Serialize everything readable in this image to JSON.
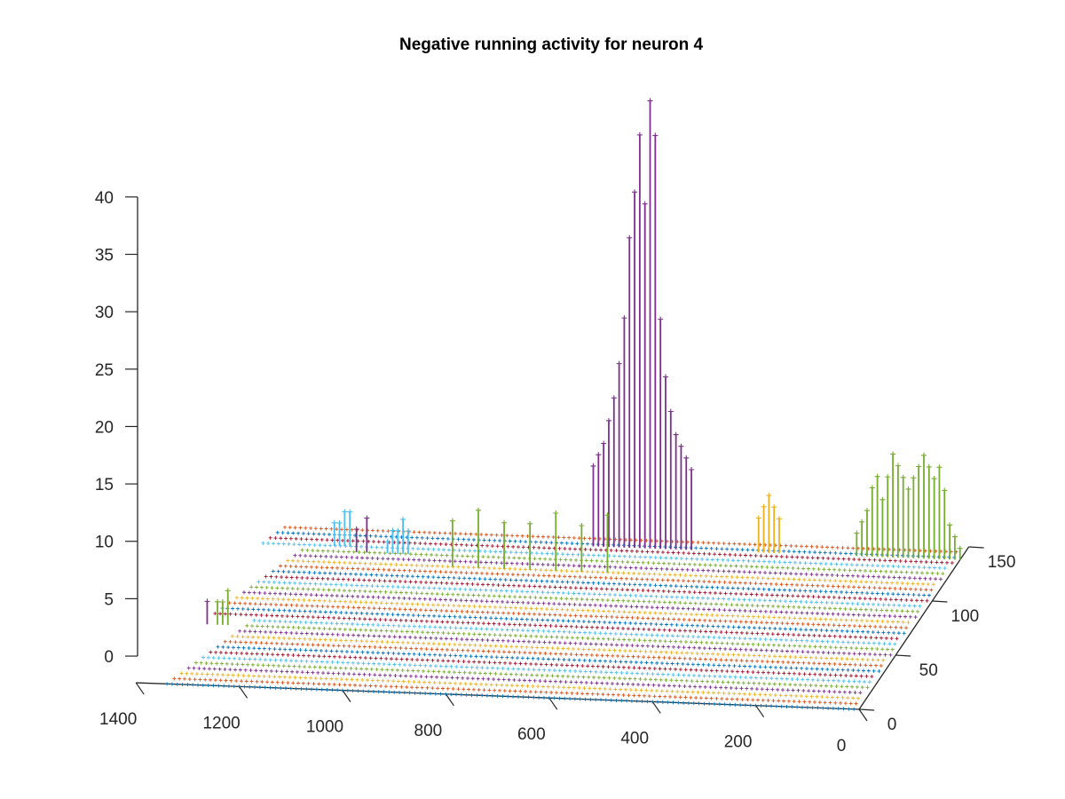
{
  "chart_data": {
    "type": "stem3",
    "title": "Negative running activity for neuron 4",
    "xlabel": "",
    "ylabel": "",
    "zlabel": "",
    "xlim": [
      0,
      1400
    ],
    "ylim": [
      0,
      150
    ],
    "zlim": [
      0,
      40
    ],
    "x_ticks": [
      "0",
      "200",
      "400",
      "600",
      "800",
      "1000",
      "1200",
      "1400"
    ],
    "y_ticks": [
      "0",
      "50",
      "100",
      "150"
    ],
    "z_ticks": [
      "0",
      "5",
      "10",
      "15",
      "20",
      "25",
      "30",
      "35",
      "40"
    ],
    "grid": false,
    "legend": "none",
    "marker": "+",
    "series_colors": [
      "#0072BD",
      "#D95319",
      "#EDB120",
      "#7E2F8E",
      "#77AC30",
      "#4DBEEE",
      "#A2142F"
    ],
    "baseline_rows": 30,
    "row_spacing": 5,
    "x_step": 10,
    "nonzero_stems": [
      {
        "row": 138,
        "color": "#7E2F8E",
        "x": [
          520,
          530,
          540,
          550,
          560,
          570,
          580,
          590,
          600,
          610,
          620,
          630,
          640,
          650,
          660,
          670,
          680,
          690,
          700,
          710
        ],
        "z": [
          7,
          8,
          9,
          10,
          12,
          15,
          20,
          36,
          39,
          30,
          36,
          31,
          27,
          20,
          16,
          13,
          11,
          9,
          8,
          7
        ]
      },
      {
        "row": 138,
        "color": "#77AC30",
        "x": [
          0,
          10,
          20,
          30,
          40,
          50,
          60,
          70,
          80,
          90,
          100,
          110,
          120,
          130,
          140,
          150,
          160,
          170,
          180,
          190,
          200
        ],
        "z": [
          1,
          2,
          3,
          6,
          8,
          7,
          8,
          9,
          8,
          7,
          6,
          7,
          8,
          9,
          7,
          5,
          7,
          6,
          4,
          3,
          2
        ]
      },
      {
        "row": 138,
        "color": "#EDB120",
        "x": [
          350,
          360,
          370,
          380,
          390
        ],
        "z": [
          3,
          4,
          5,
          4,
          3
        ]
      },
      {
        "row": 115,
        "color": "#77AC30",
        "x": [
          650,
          700,
          750,
          800,
          850,
          900,
          950
        ],
        "z": [
          5,
          4,
          5,
          4,
          4,
          5,
          4
        ]
      },
      {
        "row": 130,
        "color": "#4DBEEE",
        "x": [
          1170,
          1180,
          1190,
          1200
        ],
        "z": [
          3,
          3,
          2,
          2
        ]
      },
      {
        "row": 125,
        "color": "#4DBEEE",
        "x": [
          1050,
          1060,
          1070,
          1080,
          1090
        ],
        "z": [
          2,
          3,
          2,
          2,
          1
        ]
      },
      {
        "row": 125,
        "color": "#7E2F8E",
        "x": [
          1130,
          1150
        ],
        "z": [
          3,
          2
        ]
      },
      {
        "row": 55,
        "color": "#77AC30",
        "x": [
          1300,
          1310,
          1320
        ],
        "z": [
          3,
          2,
          2
        ]
      },
      {
        "row": 55,
        "color": "#7E2F8E",
        "x": [
          1340
        ],
        "z": [
          2
        ]
      }
    ]
  }
}
